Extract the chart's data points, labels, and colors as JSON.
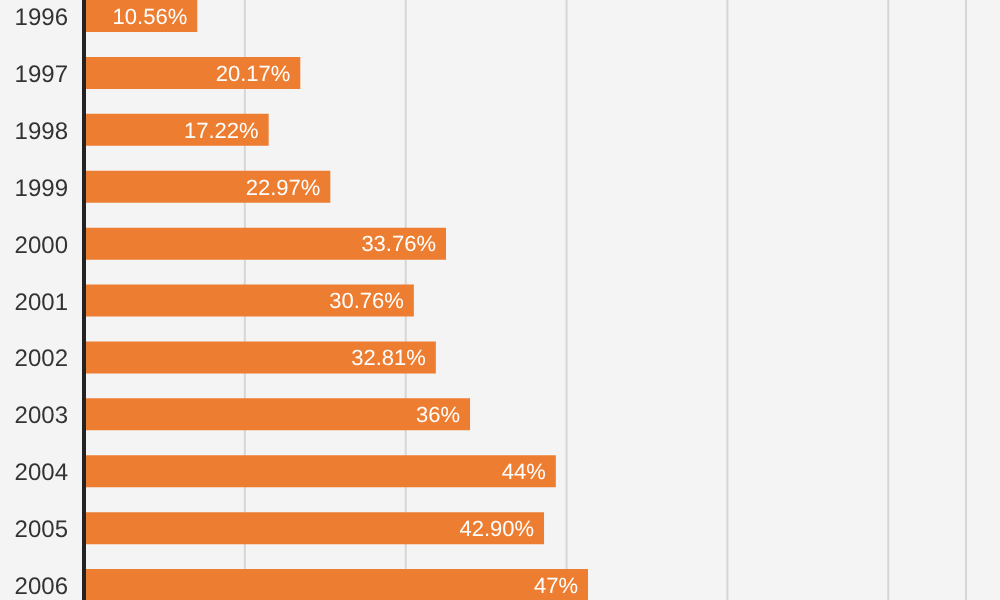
{
  "chart_data": {
    "type": "bar",
    "orientation": "horizontal",
    "categories": [
      "1996",
      "1997",
      "1998",
      "1999",
      "2000",
      "2001",
      "2002",
      "2003",
      "2004",
      "2005",
      "2006"
    ],
    "values": [
      10.56,
      20.17,
      17.22,
      22.97,
      33.76,
      30.76,
      32.81,
      36,
      44,
      42.9,
      47
    ],
    "value_labels": [
      "10.56%",
      "20.17%",
      "17.22%",
      "22.97%",
      "33.76%",
      "30.76%",
      "32.81%",
      "36%",
      "44%",
      "42.90%",
      "47%"
    ],
    "color": "#ed7d31",
    "grid": "x",
    "tick_labels": "y",
    "legend": false
  }
}
